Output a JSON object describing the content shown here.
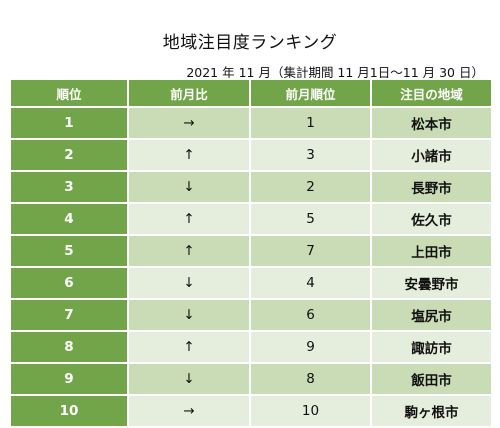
{
  "title": "地域注目度ランキング",
  "period": "2021 年 11 月（集計期間 11 月1日～11 月 30 日）",
  "headers": [
    "順位",
    "前月比",
    "前月順位",
    "注目の地域"
  ],
  "rows": [
    {
      "rank": "1",
      "change": "→",
      "prev_rank": "1",
      "area": "松本市"
    },
    {
      "rank": "2",
      "change": "↑",
      "prev_rank": "3",
      "area": "小諸市"
    },
    {
      "rank": "3",
      "change": "↓",
      "prev_rank": "2",
      "area": "長野市"
    },
    {
      "rank": "4",
      "change": "↑",
      "prev_rank": "5",
      "area": "佐久市"
    },
    {
      "rank": "5",
      "change": "↑",
      "prev_rank": "7",
      "area": "上田市"
    },
    {
      "rank": "6",
      "change": "↓",
      "prev_rank": "4",
      "area": "安曇野市"
    },
    {
      "rank": "7",
      "change": "↓",
      "prev_rank": "6",
      "area": "塩尻市"
    },
    {
      "rank": "8",
      "change": "↑",
      "prev_rank": "9",
      "area": "諏訪市"
    },
    {
      "rank": "9",
      "change": "↓",
      "prev_rank": "8",
      "area": "飯田市"
    },
    {
      "rank": "10",
      "change": "→",
      "prev_rank": "10",
      "area": "駒ヶ根市"
    }
  ],
  "colors": {
    "header_green": "#72a54a",
    "row_dark": "#c9dcb6",
    "row_light": "#e5eedc"
  }
}
